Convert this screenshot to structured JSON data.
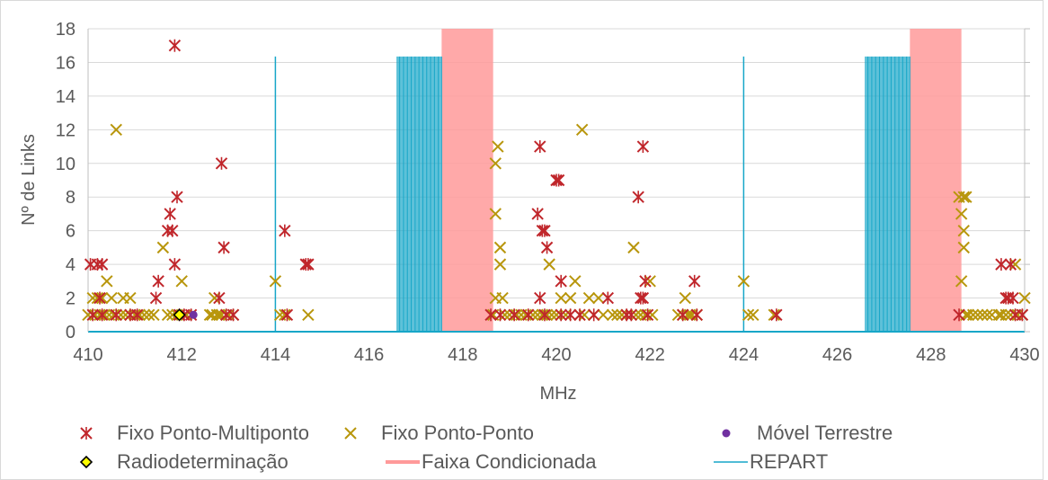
{
  "chart_data": {
    "type": "scatter",
    "xlabel": "MHz",
    "ylabel": "Nº de Links",
    "xlim": [
      410,
      430
    ],
    "ylim": [
      0,
      18
    ],
    "x_ticks": [
      "410",
      "412",
      "414",
      "416",
      "418",
      "420",
      "422",
      "424",
      "426",
      "428",
      "430"
    ],
    "y_ticks": [
      "0",
      "2",
      "4",
      "6",
      "8",
      "10",
      "12",
      "14",
      "16",
      "18"
    ],
    "grid": "horizontal",
    "legend_position": "bottom",
    "colors": {
      "fixo_pmp": "#C0262B",
      "fixo_pp": "#B8960C",
      "movel": "#7030A0",
      "radio_fill": "#FFFF00",
      "faixa": "#FF9A9A",
      "repart": "#17A6C8",
      "grid": "#D9D9D9",
      "axis": "#BFBFBF"
    },
    "legend": [
      {
        "key": "fixo_pmp",
        "label": "Fixo Ponto-Multiponto"
      },
      {
        "key": "fixo_pp",
        "label": "Fixo Ponto-Ponto"
      },
      {
        "key": "movel",
        "label": "Móvel Terrestre"
      },
      {
        "key": "radio",
        "label": "Radiodeterminação"
      },
      {
        "key": "faixa",
        "label": "Faixa Condicionada"
      },
      {
        "key": "repart",
        "label": "REPART"
      }
    ],
    "faixa_condicionada": [
      [
        417.55,
        418.65
      ],
      [
        427.55,
        428.65
      ]
    ],
    "repart": {
      "height": 16.35,
      "single_lines": [
        414.0,
        424.0
      ],
      "comb_bands": [
        [
          416.6,
          417.55
        ],
        [
          426.6,
          427.55
        ]
      ],
      "comb_step": 0.025
    },
    "series": [
      {
        "name": "Fixo Ponto-Multiponto",
        "key": "fixo_pmp",
        "marker": "asterisk",
        "points": [
          [
            410.05,
            4
          ],
          [
            410.2,
            4
          ],
          [
            410.3,
            4
          ],
          [
            410.25,
            2
          ],
          [
            410.1,
            1
          ],
          [
            410.3,
            1
          ],
          [
            410.6,
            1
          ],
          [
            410.9,
            1
          ],
          [
            411.05,
            1
          ],
          [
            411.5,
            3
          ],
          [
            411.45,
            2
          ],
          [
            411.7,
            6
          ],
          [
            411.75,
            7
          ],
          [
            411.8,
            6
          ],
          [
            411.85,
            17
          ],
          [
            411.85,
            4
          ],
          [
            411.9,
            8
          ],
          [
            411.95,
            1
          ],
          [
            412.05,
            1
          ],
          [
            412.2,
            1
          ],
          [
            412.8,
            2
          ],
          [
            412.85,
            10
          ],
          [
            412.9,
            5
          ],
          [
            412.95,
            1
          ],
          [
            413.1,
            1
          ],
          [
            414.2,
            6
          ],
          [
            414.25,
            1
          ],
          [
            414.65,
            4
          ],
          [
            414.7,
            4
          ],
          [
            418.6,
            1
          ],
          [
            418.8,
            1
          ],
          [
            419.1,
            1
          ],
          [
            419.4,
            1
          ],
          [
            419.6,
            7
          ],
          [
            419.65,
            2
          ],
          [
            419.65,
            11
          ],
          [
            419.7,
            6
          ],
          [
            419.75,
            6
          ],
          [
            419.8,
            5
          ],
          [
            419.75,
            1
          ],
          [
            420.0,
            9
          ],
          [
            420.05,
            9
          ],
          [
            420.1,
            3
          ],
          [
            420.1,
            1
          ],
          [
            420.3,
            1
          ],
          [
            420.5,
            1
          ],
          [
            420.8,
            1
          ],
          [
            421.1,
            2
          ],
          [
            421.5,
            1
          ],
          [
            421.6,
            1
          ],
          [
            421.75,
            8
          ],
          [
            421.8,
            2
          ],
          [
            421.85,
            11
          ],
          [
            421.9,
            3
          ],
          [
            421.85,
            2
          ],
          [
            421.95,
            1
          ],
          [
            422.7,
            1
          ],
          [
            422.95,
            3
          ],
          [
            423.0,
            1
          ],
          [
            424.7,
            1
          ],
          [
            428.6,
            1
          ],
          [
            429.5,
            4
          ],
          [
            429.6,
            2
          ],
          [
            429.65,
            2
          ],
          [
            429.7,
            4
          ],
          [
            429.75,
            2
          ],
          [
            429.8,
            1
          ],
          [
            429.95,
            1
          ]
        ]
      },
      {
        "name": "Fixo Ponto-Ponto",
        "key": "fixo_pp",
        "marker": "x",
        "points": [
          [
            410.0,
            1
          ],
          [
            410.1,
            2
          ],
          [
            410.15,
            1
          ],
          [
            410.2,
            2
          ],
          [
            410.25,
            1
          ],
          [
            410.3,
            2
          ],
          [
            410.35,
            1
          ],
          [
            410.4,
            3
          ],
          [
            410.45,
            1
          ],
          [
            410.5,
            2
          ],
          [
            410.55,
            1
          ],
          [
            410.6,
            12
          ],
          [
            410.7,
            1
          ],
          [
            410.75,
            2
          ],
          [
            410.8,
            1
          ],
          [
            410.9,
            2
          ],
          [
            411.0,
            1
          ],
          [
            411.1,
            1
          ],
          [
            411.2,
            1
          ],
          [
            411.3,
            1
          ],
          [
            411.4,
            1
          ],
          [
            411.6,
            5
          ],
          [
            411.7,
            1
          ],
          [
            411.8,
            1
          ],
          [
            411.9,
            1
          ],
          [
            412.0,
            3
          ],
          [
            412.1,
            1
          ],
          [
            412.6,
            1
          ],
          [
            412.65,
            1
          ],
          [
            412.7,
            2
          ],
          [
            412.75,
            1
          ],
          [
            412.8,
            1
          ],
          [
            412.85,
            1
          ],
          [
            413.0,
            1
          ],
          [
            413.1,
            1
          ],
          [
            414.0,
            3
          ],
          [
            414.1,
            1
          ],
          [
            414.2,
            1
          ],
          [
            414.7,
            1
          ],
          [
            418.65,
            1
          ],
          [
            418.7,
            2
          ],
          [
            418.7,
            10
          ],
          [
            418.75,
            11
          ],
          [
            418.7,
            7
          ],
          [
            418.8,
            4
          ],
          [
            418.8,
            5
          ],
          [
            418.85,
            2
          ],
          [
            418.9,
            1
          ],
          [
            419.0,
            1
          ],
          [
            419.15,
            1
          ],
          [
            419.25,
            1
          ],
          [
            419.35,
            1
          ],
          [
            419.5,
            1
          ],
          [
            419.6,
            1
          ],
          [
            419.7,
            1
          ],
          [
            419.8,
            1
          ],
          [
            419.85,
            4
          ],
          [
            419.9,
            1
          ],
          [
            420.0,
            1
          ],
          [
            420.1,
            2
          ],
          [
            420.2,
            1
          ],
          [
            420.3,
            2
          ],
          [
            420.4,
            3
          ],
          [
            420.5,
            1
          ],
          [
            420.55,
            12
          ],
          [
            420.6,
            1
          ],
          [
            420.7,
            2
          ],
          [
            420.8,
            1
          ],
          [
            420.9,
            2
          ],
          [
            421.0,
            1
          ],
          [
            421.2,
            1
          ],
          [
            421.3,
            1
          ],
          [
            421.4,
            1
          ],
          [
            421.5,
            1
          ],
          [
            421.65,
            5
          ],
          [
            421.7,
            1
          ],
          [
            421.8,
            1
          ],
          [
            421.9,
            1
          ],
          [
            422.0,
            3
          ],
          [
            422.05,
            1
          ],
          [
            422.6,
            1
          ],
          [
            422.7,
            1
          ],
          [
            422.75,
            2
          ],
          [
            422.8,
            1
          ],
          [
            422.85,
            1
          ],
          [
            422.9,
            1
          ],
          [
            423.0,
            1
          ],
          [
            424.0,
            3
          ],
          [
            424.1,
            1
          ],
          [
            424.2,
            1
          ],
          [
            424.65,
            1
          ],
          [
            428.6,
            8
          ],
          [
            428.65,
            7
          ],
          [
            428.65,
            3
          ],
          [
            428.7,
            8
          ],
          [
            428.7,
            6
          ],
          [
            428.7,
            5
          ],
          [
            428.75,
            8
          ],
          [
            428.75,
            1
          ],
          [
            428.8,
            1
          ],
          [
            428.9,
            1
          ],
          [
            429.0,
            1
          ],
          [
            429.1,
            1
          ],
          [
            429.2,
            1
          ],
          [
            429.3,
            1
          ],
          [
            429.45,
            1
          ],
          [
            429.5,
            1
          ],
          [
            429.6,
            1
          ],
          [
            429.7,
            1
          ],
          [
            429.8,
            4
          ],
          [
            429.85,
            1
          ],
          [
            429.95,
            1
          ],
          [
            430.0,
            2
          ]
        ]
      },
      {
        "name": "Móvel Terrestre",
        "key": "movel",
        "marker": "circle",
        "points": [
          [
            412.25,
            1
          ]
        ]
      },
      {
        "name": "Radiodeterminação",
        "key": "radio",
        "marker": "diamond",
        "points": [
          [
            411.95,
            1
          ]
        ]
      }
    ]
  }
}
